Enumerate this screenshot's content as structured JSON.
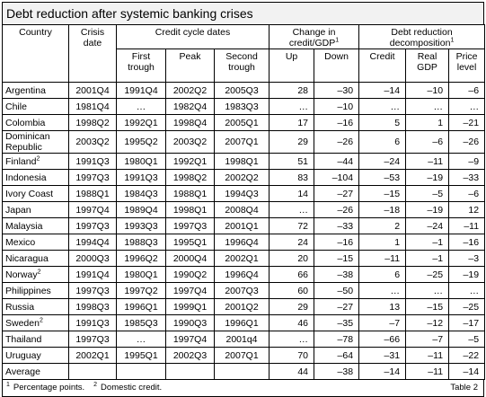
{
  "title": "Debt reduction after systemic banking crises",
  "header": {
    "country": "Country",
    "crisis_date": "Crisis date",
    "credit_cycle": "Credit cycle dates",
    "change": {
      "text": "Change in credit/GDP",
      "sup": "1"
    },
    "decomposition": {
      "text": "Debt reduction decomposition",
      "sup": "1"
    },
    "sub": [
      "First trough",
      "Peak",
      "Second trough",
      "Up",
      "Down",
      "Credit",
      "Real GDP",
      "Price level"
    ]
  },
  "rows": [
    {
      "country": "Argentina",
      "dates": [
        "2001Q4",
        "1991Q4",
        "2002Q2",
        "2005Q3"
      ],
      "values": [
        "28",
        "–30",
        "–14",
        "–10",
        "–6"
      ]
    },
    {
      "country": "Chile",
      "dates": [
        "1981Q4",
        "…",
        "1982Q4",
        "1983Q3"
      ],
      "values": [
        "…",
        "–10",
        "…",
        "…",
        "…"
      ]
    },
    {
      "country": "Colombia",
      "dates": [
        "1998Q2",
        "1992Q1",
        "1998Q4",
        "2005Q1"
      ],
      "values": [
        "17",
        "–16",
        "5",
        "1",
        "–21"
      ]
    },
    {
      "country": "Dominican Republic",
      "dates": [
        "2003Q2",
        "1995Q2",
        "2003Q2",
        "2007Q1"
      ],
      "values": [
        "29",
        "–26",
        "6",
        "–6",
        "–26"
      ]
    },
    {
      "country": "Finland",
      "sup": "2",
      "dates": [
        "1991Q3",
        "1980Q1",
        "1992Q1",
        "1998Q1"
      ],
      "values": [
        "51",
        "–44",
        "–24",
        "–11",
        "–9"
      ]
    },
    {
      "country": "Indonesia",
      "dates": [
        "1997Q3",
        "1991Q3",
        "1998Q2",
        "2002Q2"
      ],
      "values": [
        "83",
        "–104",
        "–53",
        "–19",
        "–33"
      ]
    },
    {
      "country": "Ivory Coast",
      "dates": [
        "1988Q1",
        "1984Q3",
        "1988Q1",
        "1994Q3"
      ],
      "values": [
        "14",
        "–27",
        "–15",
        "–5",
        "–6"
      ]
    },
    {
      "country": "Japan",
      "dates": [
        "1997Q4",
        "1989Q4",
        "1998Q1",
        "2008Q4"
      ],
      "values": [
        "…",
        "–26",
        "–18",
        "–19",
        "12"
      ]
    },
    {
      "country": "Malaysia",
      "dates": [
        "1997Q3",
        "1993Q3",
        "1997Q3",
        "2001Q1"
      ],
      "values": [
        "72",
        "–33",
        "2",
        "–24",
        "–11"
      ]
    },
    {
      "country": "Mexico",
      "dates": [
        "1994Q4",
        "1988Q3",
        "1995Q1",
        "1996Q4"
      ],
      "values": [
        "24",
        "–16",
        "1",
        "–1",
        "–16"
      ]
    },
    {
      "country": "Nicaragua",
      "dates": [
        "2000Q3",
        "1996Q2",
        "2000Q4",
        "2002Q1"
      ],
      "values": [
        "20",
        "–15",
        "–11",
        "–1",
        "–3"
      ]
    },
    {
      "country": "Norway",
      "sup": "2",
      "dates": [
        "1991Q4",
        "1980Q1",
        "1990Q2",
        "1996Q4"
      ],
      "values": [
        "66",
        "–38",
        "6",
        "–25",
        "–19"
      ]
    },
    {
      "country": "Philippines",
      "dates": [
        "1997Q3",
        "1997Q2",
        "1997Q4",
        "2007Q3"
      ],
      "values": [
        "60",
        "–50",
        "…",
        "…",
        "…"
      ]
    },
    {
      "country": "Russia",
      "dates": [
        "1998Q3",
        "1996Q1",
        "1999Q1",
        "2001Q2"
      ],
      "values": [
        "29",
        "–27",
        "13",
        "–15",
        "–25"
      ]
    },
    {
      "country": "Sweden",
      "sup": "2",
      "dates": [
        "1991Q3",
        "1985Q3",
        "1990Q3",
        "1996Q1"
      ],
      "values": [
        "46",
        "–35",
        "–7",
        "–12",
        "–17"
      ]
    },
    {
      "country": "Thailand",
      "dates": [
        "1997Q3",
        "…",
        "1997Q4",
        "2001q4"
      ],
      "values": [
        "…",
        "–78",
        "–66",
        "–7",
        "–5"
      ]
    },
    {
      "country": "Uruguay",
      "dates": [
        "2002Q1",
        "1995Q1",
        "2002Q3",
        "2007Q1"
      ],
      "values": [
        "70",
        "–64",
        "–31",
        "–11",
        "–22"
      ]
    },
    {
      "country": "Average",
      "values": [
        "44",
        "–38",
        "–14",
        "–11",
        "–14"
      ]
    }
  ],
  "footnotes": [
    {
      "sup": "1",
      "text": "Percentage points."
    },
    {
      "sup": "2",
      "text": "Domestic credit."
    }
  ],
  "table_label": "Table 2"
}
